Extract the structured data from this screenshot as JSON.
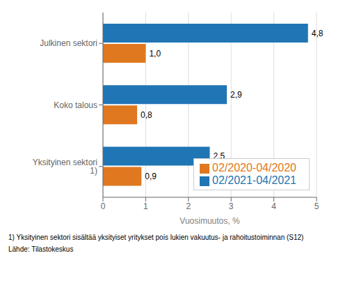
{
  "chart_data": {
    "type": "bar",
    "orientation": "horizontal",
    "categories": [
      "Yksityinen sektori 1)",
      "Koko talous",
      "Julkinen sektori"
    ],
    "series": [
      {
        "name": "02/2021-04/2021",
        "color": "#2075B4",
        "values": [
          2.5,
          2.9,
          4.8
        ],
        "value_labels": [
          "2,5",
          "2,9",
          "4,8"
        ]
      },
      {
        "name": "02/2020-04/2020",
        "color": "#E07820",
        "values": [
          0.9,
          0.8,
          1.0
        ],
        "value_labels": [
          "0,9",
          "0,8",
          "1,0"
        ]
      }
    ],
    "xlabel": "Vuosimuutos, %",
    "xlim": [
      0,
      5
    ],
    "xticks": [
      0,
      1,
      2,
      3,
      4,
      5
    ],
    "grid": true,
    "legend": "lower right",
    "data_labels": true,
    "annotations": [
      "1) Yksityinen sektori sisältää yksityiset yritykset pois lukien vakuutus- ja rahoitustoiminnan (S12)",
      "Lähde: Tilastokeskus"
    ]
  }
}
